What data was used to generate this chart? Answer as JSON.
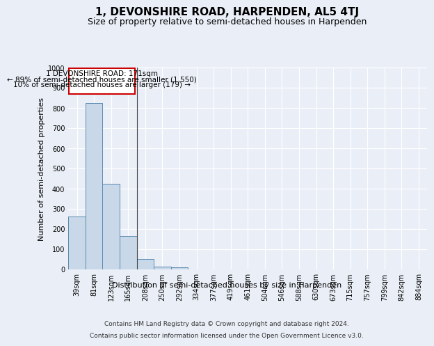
{
  "title": "1, DEVONSHIRE ROAD, HARPENDEN, AL5 4TJ",
  "subtitle": "Size of property relative to semi-detached houses in Harpenden",
  "xlabel": "Distribution of semi-detached houses by size in Harpenden",
  "ylabel": "Number of semi-detached properties",
  "categories": [
    "39sqm",
    "81sqm",
    "123sqm",
    "165sqm",
    "208sqm",
    "250sqm",
    "292sqm",
    "334sqm",
    "377sqm",
    "419sqm",
    "461sqm",
    "504sqm",
    "546sqm",
    "588sqm",
    "630sqm",
    "673sqm",
    "715sqm",
    "757sqm",
    "799sqm",
    "842sqm",
    "884sqm"
  ],
  "values": [
    262,
    825,
    425,
    165,
    52,
    15,
    10,
    0,
    0,
    0,
    0,
    0,
    0,
    0,
    0,
    0,
    0,
    0,
    0,
    0,
    0
  ],
  "bar_color": "#c8d8e8",
  "bar_edge_color": "#5a8ab0",
  "ylim": [
    0,
    1000
  ],
  "yticks": [
    0,
    100,
    200,
    300,
    400,
    500,
    600,
    700,
    800,
    900,
    1000
  ],
  "annotation_text_line1": "1 DEVONSHIRE ROAD: 171sqm",
  "annotation_text_line2": "← 89% of semi-detached houses are smaller (1,550)",
  "annotation_text_line3": "10% of semi-detached houses are larger (179) →",
  "annotation_box_color": "#ffffff",
  "annotation_box_edge_color": "#cc0000",
  "footer_line1": "Contains HM Land Registry data © Crown copyright and database right 2024.",
  "footer_line2": "Contains public sector information licensed under the Open Government Licence v3.0.",
  "background_color": "#eaeff7",
  "plot_bg_color": "#eaeff7",
  "grid_color": "#ffffff",
  "title_fontsize": 11,
  "subtitle_fontsize": 9,
  "tick_fontsize": 7,
  "ylabel_fontsize": 8,
  "xlabel_fontsize": 8,
  "footer_fontsize": 6.5,
  "annotation_fontsize": 7.5
}
